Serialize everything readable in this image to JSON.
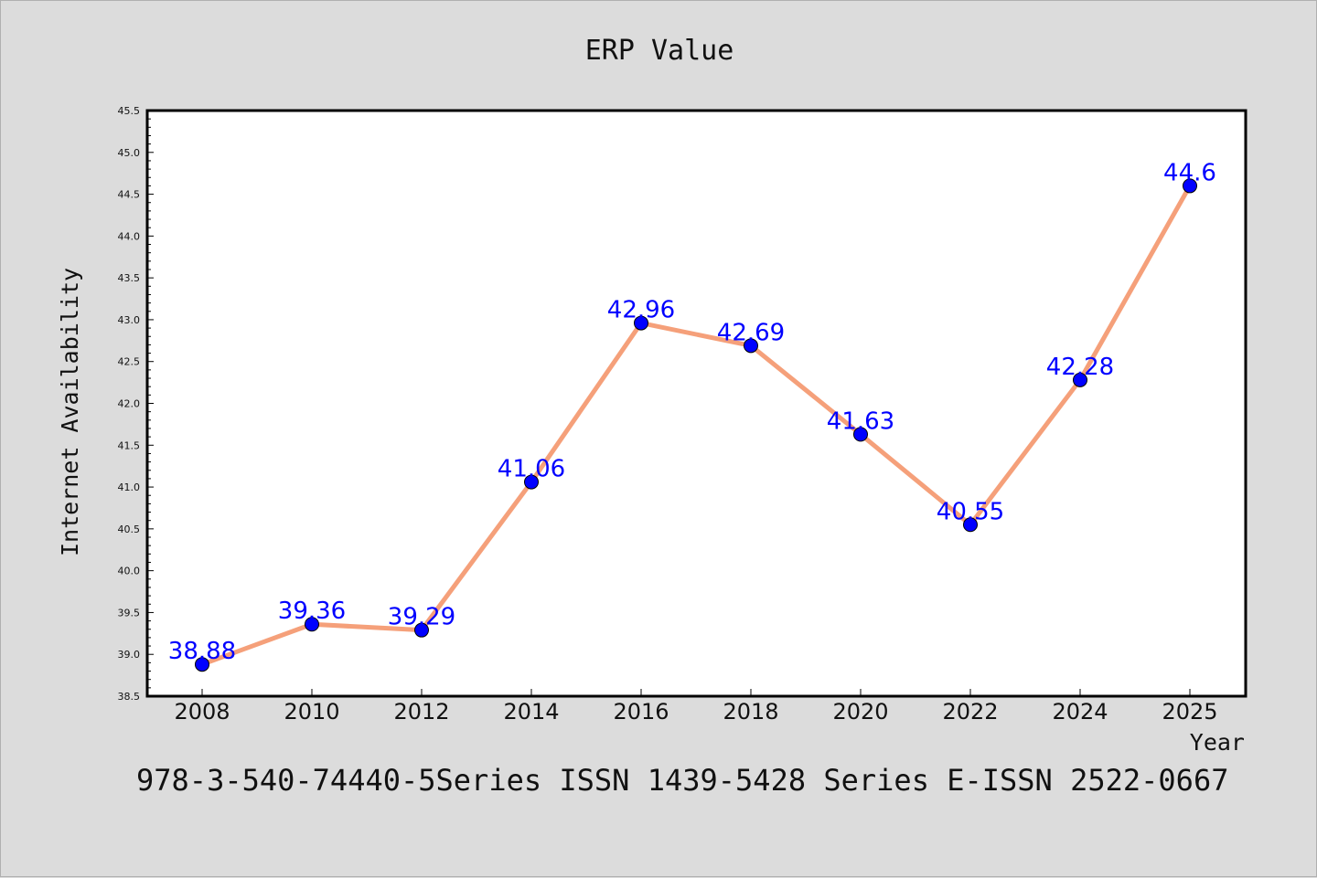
{
  "chart_data": {
    "type": "line",
    "title": "ERP Value",
    "xlabel": "Year",
    "ylabel": "Internet Availability",
    "categories": [
      "2008",
      "2010",
      "2012",
      "2014",
      "2016",
      "2018",
      "2020",
      "2022",
      "2024",
      "2025"
    ],
    "series": [
      {
        "values": [
          38.88,
          39.36,
          39.29,
          41.06,
          42.96,
          42.69,
          41.63,
          40.55,
          42.28,
          44.6
        ],
        "data_labels": [
          "38.88",
          "39.36",
          "39.29",
          "41.06",
          "42.96",
          "42.69",
          "41.63",
          "40.55",
          "42.28",
          "44.6"
        ],
        "line_color": "#f5a07a",
        "marker_color": "#0000ff"
      }
    ],
    "ylim": [
      38.5,
      45.5
    ],
    "yticks": [
      "38.5",
      "39.0",
      "39.5",
      "40.0",
      "40.5",
      "41.0",
      "41.5",
      "42.0",
      "42.5",
      "43.0",
      "43.5",
      "44.0",
      "44.5",
      "45.0",
      "45.5"
    ],
    "grid": false,
    "legend": "none"
  },
  "footnote": "978-3-540-74440-5Series ISSN 1439-5428 Series E-ISSN 2522-0667",
  "colors": {
    "background": "#dcdcdc",
    "plot_area": "#ffffff",
    "line": "#f5a07a",
    "marker": "#0000ff",
    "data_label": "#0000ff"
  }
}
